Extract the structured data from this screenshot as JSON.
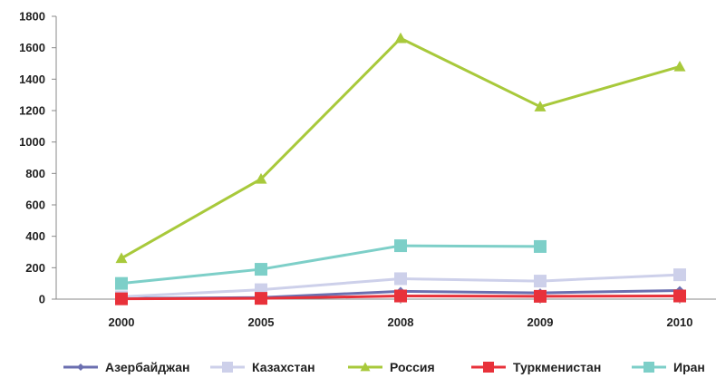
{
  "chart_data": {
    "type": "line",
    "title": "",
    "xlabel": "",
    "ylabel": "",
    "categories": [
      "2000",
      "2005",
      "2008",
      "2009",
      "2010"
    ],
    "ylim": [
      0,
      1800
    ],
    "yticks": [
      0,
      200,
      400,
      600,
      800,
      1000,
      1200,
      1400,
      1600,
      1800
    ],
    "grid": false,
    "legend_position": "bottom",
    "series": [
      {
        "name": "Азербайджан",
        "color": "#6b6fb0",
        "marker": "diamond",
        "values": [
          5,
          10,
          50,
          40,
          55
        ]
      },
      {
        "name": "Казахстан",
        "color": "#cdd0ea",
        "marker": "square",
        "values": [
          15,
          60,
          130,
          115,
          155
        ]
      },
      {
        "name": "Россия",
        "color": "#a8c93b",
        "marker": "triangle",
        "values": [
          260,
          765,
          1660,
          1225,
          1480
        ]
      },
      {
        "name": "Туркменистан",
        "color": "#e8313a",
        "marker": "square",
        "values": [
          2,
          5,
          20,
          18,
          20
        ]
      },
      {
        "name": "Иран",
        "color": "#7dcfc8",
        "marker": "square",
        "values": [
          100,
          190,
          340,
          335,
          null
        ]
      }
    ]
  }
}
